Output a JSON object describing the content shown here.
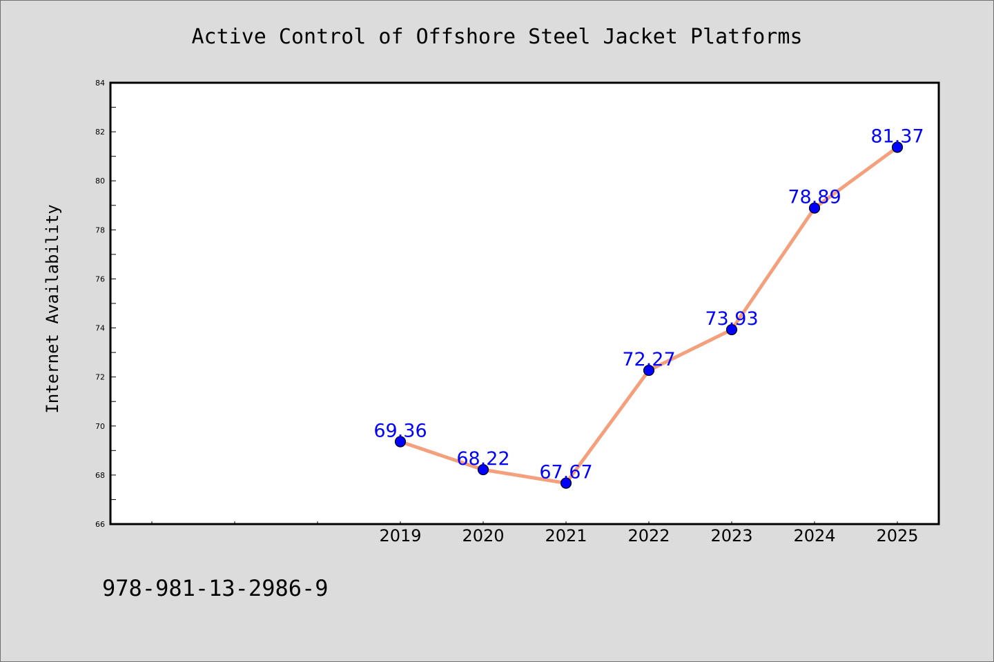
{
  "chart_data": {
    "type": "line",
    "title": "Active Control of Offshore Steel Jacket Platforms",
    "xlabel": "",
    "ylabel": "Internet Availability",
    "categories": [
      "2019",
      "2020",
      "2021",
      "2022",
      "2023",
      "2024",
      "2025"
    ],
    "series": [
      {
        "values": [
          69.36,
          68.22,
          67.67,
          72.27,
          73.93,
          78.89,
          81.37
        ],
        "data_labels": [
          "69.36",
          "68.22",
          "67.67",
          "72.27",
          "73.93",
          "78.89",
          "81.37"
        ],
        "line_color": "#f4a07c",
        "marker_color": "#0000ff"
      }
    ],
    "ylim": [
      66,
      84
    ],
    "yticks": [
      "66",
      "68",
      "70",
      "72",
      "74",
      "76",
      "78",
      "80",
      "82",
      "84"
    ],
    "xlim_leading_empty_slots": 3,
    "grid": false,
    "legend": "none"
  },
  "footer": {
    "isbn": "978-981-13-2986-9"
  },
  "colors": {
    "background": "#dcdcdc",
    "plot_background": "#ffffff",
    "axis": "#000000",
    "line": "#f4a07c",
    "marker": "#0000ff",
    "data_label": "#0000ff"
  }
}
